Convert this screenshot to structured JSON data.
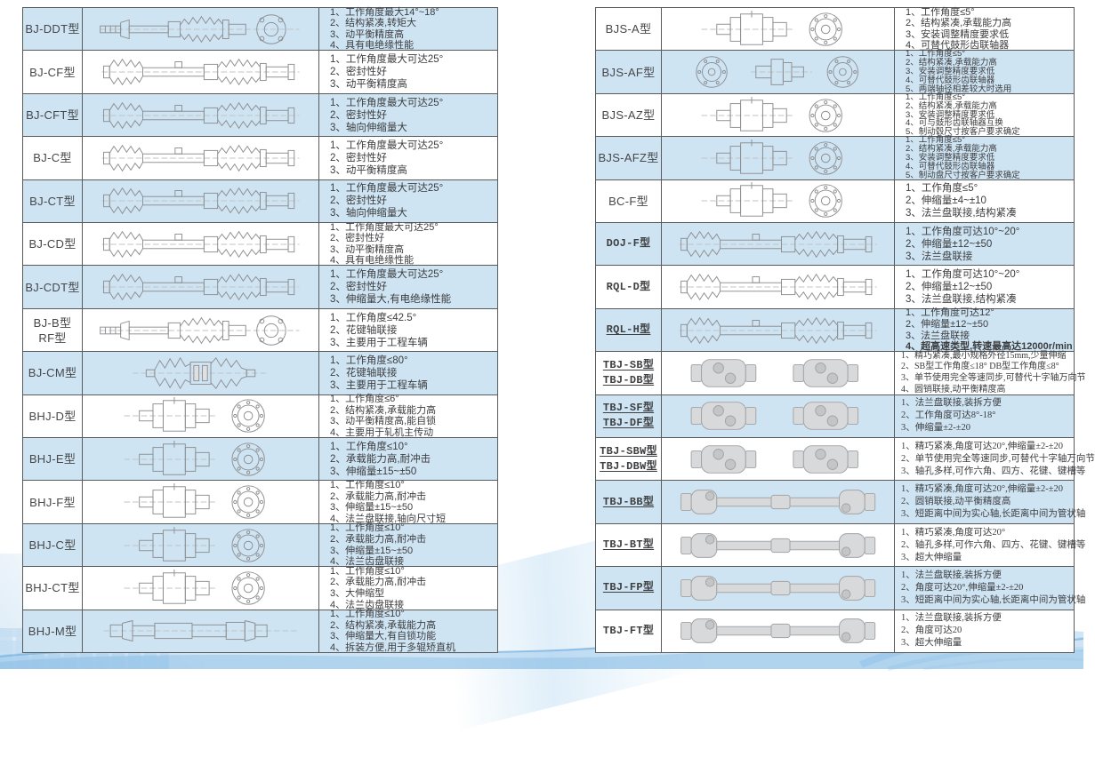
{
  "colors": {
    "row_highlight": "#cfe4f3",
    "grid_border": "#595a5c",
    "text": "#3c3d3f",
    "wave_blue": "#8fc1e6"
  },
  "tables": [
    {
      "id": "left",
      "rows": [
        {
          "names": [
            "BJ-DDT型"
          ],
          "drawing": "flanged-shaft",
          "shaded": true,
          "specs": [
            "1、工作角度最大14°~18°",
            "2、结构紧凑,转矩大",
            "3、动平衡精度高",
            "4、具有电绝缘性能"
          ]
        },
        {
          "names": [
            "BJ-CF型"
          ],
          "drawing": "bellows-shaft",
          "shaded": false,
          "specs": [
            "1、工作角度最大可达25°",
            "2、密封性好",
            "3、动平衡精度高"
          ]
        },
        {
          "names": [
            "BJ-CFT型"
          ],
          "drawing": "bellows-shaft",
          "shaded": true,
          "specs": [
            "1、工作角度最大可达25°",
            "2、密封性好",
            "3、轴向伸缩量大"
          ]
        },
        {
          "names": [
            "BJ-C型"
          ],
          "drawing": "bellows-shaft",
          "shaded": false,
          "specs": [
            "1、工作角度最大可达25°",
            "2、密封性好",
            "3、动平衡精度高"
          ]
        },
        {
          "names": [
            "BJ-CT型"
          ],
          "drawing": "bellows-shaft",
          "shaded": true,
          "specs": [
            "1、工作角度最大可达25°",
            "2、密封性好",
            "3、轴向伸缩量大"
          ]
        },
        {
          "names": [
            "BJ-CD型"
          ],
          "drawing": "bellows-shaft",
          "shaded": false,
          "specs": [
            "1、工作角度最大可达25°",
            "2、密封性好",
            "3、动平衡精度高",
            "4、具有电绝缘性能"
          ]
        },
        {
          "names": [
            "BJ-CDT型"
          ],
          "drawing": "bellows-shaft",
          "shaded": true,
          "specs": [
            "1、工作角度最大可达25°",
            "2、密封性好",
            "3、伸缩量大,有电绝缘性能"
          ]
        },
        {
          "names": [
            "BJ-B型",
            "RF型"
          ],
          "drawing": "flanged-shaft",
          "shaded": false,
          "specs": [
            "1、工作角度≤42.5°",
            "2、花键轴联接",
            "3、主要用于工程车辆"
          ]
        },
        {
          "names": [
            "BJ-CM型"
          ],
          "drawing": "double-bellows",
          "shaded": true,
          "specs": [
            "1、工作角度≤80°",
            "2、花键轴联接",
            "3、主要用于工程车辆"
          ]
        },
        {
          "names": [
            "BHJ-D型"
          ],
          "drawing": "coupling-disc",
          "shaded": false,
          "specs": [
            "1、工作角度≤6°",
            "2、结构紧凑,承载能力高",
            "3、动平衡精度高,能自锁",
            "4、主要用于轧机主传动"
          ]
        },
        {
          "names": [
            "BHJ-E型"
          ],
          "drawing": "coupling-disc",
          "shaded": true,
          "specs": [
            "1、工作角度≤10°",
            "2、承载能力高,耐冲击",
            "3、伸缩量±15~±50"
          ]
        },
        {
          "names": [
            "BHJ-F型"
          ],
          "drawing": "coupling-disc",
          "shaded": false,
          "specs": [
            "1、工作角度≤10°",
            "2、承载能力高,耐冲击",
            "3、伸缩量±15~±50",
            "4、法兰盘联接,轴向尺寸短"
          ]
        },
        {
          "names": [
            "BHJ-C型"
          ],
          "drawing": "coupling-disc",
          "shaded": true,
          "specs": [
            "1、工作角度≤10°",
            "2、承载能力高,耐冲击",
            "3、伸缩量±15~±50",
            "4、法兰齿盘联接"
          ]
        },
        {
          "names": [
            "BHJ-CT型"
          ],
          "drawing": "coupling-disc",
          "shaded": false,
          "specs": [
            "1、工作角度≤10°",
            "2、承载能力高,耐冲击",
            "3、大伸缩型",
            "4、法兰齿盘联接"
          ]
        },
        {
          "names": [
            "BHJ-M型"
          ],
          "drawing": "telescopic-shaft",
          "shaded": true,
          "specs": [
            "1、工作角度≤10°",
            "2、结构紧凑,承载能力高",
            "3、伸缩量大,有自锁功能",
            "4、拆装方便,用于多辊矫直机"
          ]
        }
      ]
    },
    {
      "id": "right",
      "rows": [
        {
          "names": [
            "BJS-A型"
          ],
          "drawing": "coupling-disc",
          "shaded": false,
          "specs": [
            "1、工作角度≤5°",
            "2、结构紧凑,承载能力高",
            "3、安装调整精度要求低",
            "4、可替代鼓形齿联轴器"
          ]
        },
        {
          "names": [
            "BJS-AF型"
          ],
          "drawing": "disc-coupling-disc",
          "shaded": true,
          "specs": [
            "1、工作角度≤5°",
            "2、结构紧凑,承载能力高",
            "3、安装调整精度要求低",
            "4、可替代鼓形齿联轴器",
            "5、两端轴径相差较大时选用"
          ]
        },
        {
          "names": [
            "BJS-AZ型"
          ],
          "drawing": "coupling-disc",
          "shaded": false,
          "specs": [
            "1、工作角度≤5°",
            "2、结构紧凑,承载能力高",
            "3、安装调整精度要求低",
            "4、可与鼓形齿联轴器互换",
            "5、制动毂尺寸按客户要求确定"
          ]
        },
        {
          "names": [
            "BJS-AFZ型"
          ],
          "drawing": "coupling-disc",
          "shaded": true,
          "specs": [
            "1、工作角度≤5°",
            "2、结构紧凑,承载能力高",
            "3、安装调整精度要求低",
            "4、可替代鼓形齿联轴器",
            "5、制动盘尺寸按客户要求确定"
          ]
        },
        {
          "names": [
            "BC-F型"
          ],
          "drawing": "coupling-disc",
          "shaded": false,
          "specs": [
            "1、工作角度≤5°",
            "2、伸缩量±4~±10",
            "3、法兰盘联接,结构紧凑"
          ]
        },
        {
          "names": [
            "DOJ-F型"
          ],
          "drawing": "bellows-shaft",
          "shaded": true,
          "mono": true,
          "specs": [
            "1、工作角度可达10°~20°",
            "2、伸缩量±12~±50",
            "3、法兰盘联接"
          ]
        },
        {
          "names": [
            "RQL-D型"
          ],
          "drawing": "bellows-shaft",
          "shaded": false,
          "mono": true,
          "specs": [
            "1、工作角度可达10°~20°",
            "2、伸缩量±12~±50",
            "3、法兰盘联接,结构紧凑"
          ]
        },
        {
          "names": [
            "RQL-H型"
          ],
          "drawing": "bellows-shaft",
          "shaded": true,
          "mono": true,
          "underline": true,
          "bold_lines": [
            3
          ],
          "specs": [
            "1、工作角度可达12°",
            "2、伸缩量±12~±50",
            "3、法兰盘联接",
            "4、超高速类型,转速最高达12000r/min"
          ]
        },
        {
          "names": [
            "TBJ-SB型",
            "TBJ-DB型"
          ],
          "drawing": "joint-pair",
          "shaded": false,
          "mono": true,
          "serif": true,
          "underline": true,
          "specs": [
            "1、精巧紧凑,最小规格外径15mm,少量伸缩",
            "2、SB型工作角度≤18° DB型工作角度≤8°",
            "3、单节使用完全等速同步,可替代十字轴万向节",
            "4、圆销联接,动平衡精度高"
          ]
        },
        {
          "names": [
            "TBJ-SF型",
            "TBJ-DF型"
          ],
          "drawing": "joint-pair",
          "shaded": true,
          "mono": true,
          "serif": true,
          "underline": true,
          "specs": [
            "1、法兰盘联接,装拆方便",
            "2、工作角度可达8°-18°",
            "3、伸缩量±2-±20"
          ]
        },
        {
          "names": [
            "TBJ-SBW型",
            "TBJ-DBW型"
          ],
          "drawing": "joint-pair",
          "shaded": false,
          "mono": true,
          "serif": true,
          "underline": true,
          "specs": [
            "1、精巧紧凑,角度可达20°,伸缩量±2-±20",
            "2、单节使用完全等速同步,可替代十字轴万向节",
            "3、轴孔多样,可作六角、四方、花键、键槽等"
          ]
        },
        {
          "names": [
            "TBJ-BB型"
          ],
          "drawing": "joint-shaft",
          "shaded": true,
          "mono": true,
          "serif": true,
          "underline": true,
          "specs": [
            "1、精巧紧凑,角度可达20°,伸缩量±2-±20",
            "2、圆销联接,动平衡精度高",
            "3、短距离中间为实心轴,长距离中间为管状轴"
          ]
        },
        {
          "names": [
            "TBJ-BT型"
          ],
          "drawing": "joint-shaft",
          "shaded": false,
          "mono": true,
          "serif": true,
          "underline": true,
          "specs": [
            "1、精巧紧凑,角度可达20°",
            "2、轴孔多样,可作六角、四方、花键、键槽等",
            "3、超大伸缩量"
          ]
        },
        {
          "names": [
            "TBJ-FP型"
          ],
          "drawing": "joint-shaft",
          "shaded": true,
          "mono": true,
          "serif": true,
          "underline": true,
          "specs": [
            "1、法兰盘联接,装拆方便",
            "2、角度可达20°,伸缩量±2-±20",
            "3、短距离中间为实心轴,长距离中间为管状轴"
          ]
        },
        {
          "names": [
            "TBJ-FT型"
          ],
          "drawing": "joint-shaft",
          "shaded": false,
          "mono": true,
          "serif": true,
          "specs": [
            "1、法兰盘联接,装拆方便",
            "2、角度可达20",
            "3、超大伸缩量"
          ]
        }
      ]
    }
  ]
}
